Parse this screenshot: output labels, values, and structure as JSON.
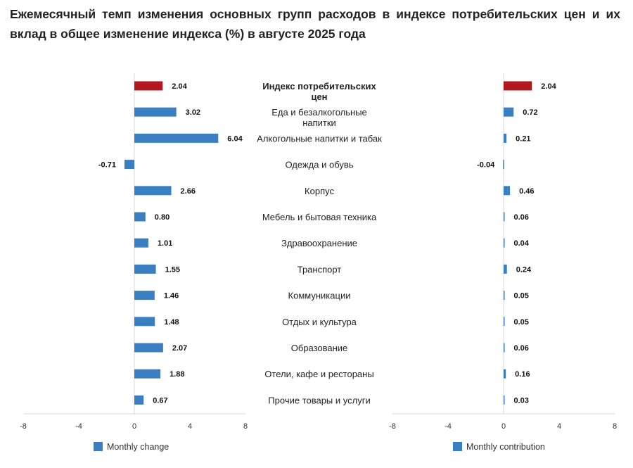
{
  "chart_data": {
    "type": "bar",
    "orientation": "horizontal",
    "title": "Ежемесячный темп изменения основных групп расходов в индексе потребительских цен и их вклад в общее изменение индекса (%) в августе 2025 года",
    "categories": [
      "Индекс потребительских цен",
      "Еда и безалкогольные напитки",
      "Алкогольные напитки и табак",
      "Одежда и обувь",
      "Корпус",
      "Мебель и бытовая техника",
      "Здравоохранение",
      "Транспорт",
      "Коммуникации",
      "Отдых и культура",
      "Образование",
      "Отели, кафе и рестораны",
      "Прочие товары и услуги"
    ],
    "category_lines": [
      [
        "Индекс потребительских",
        "цен"
      ],
      [
        "Еда и безалкогольные",
        "напитки"
      ],
      [
        "Алкогольные напитки и табак"
      ],
      [
        "Одежда и обувь"
      ],
      [
        "Корпус"
      ],
      [
        "Мебель и бытовая техника"
      ],
      [
        "Здравоохранение"
      ],
      [
        "Транспорт"
      ],
      [
        "Коммуникации"
      ],
      [
        "Отдых и культура"
      ],
      [
        "Образование"
      ],
      [
        "Отели, кафе и рестораны"
      ],
      [
        "Прочие товары и услуги"
      ]
    ],
    "series": [
      {
        "name": "Monthly change",
        "values": [
          2.04,
          3.02,
          6.04,
          -0.71,
          2.66,
          0.8,
          1.01,
          1.55,
          1.46,
          1.48,
          2.07,
          1.88,
          0.67
        ],
        "labels": [
          "2.04",
          "3.02",
          "6.04",
          "-0.71",
          "2.66",
          "0.80",
          "1.01",
          "1.55",
          "1.46",
          "1.48",
          "2.07",
          "1.88",
          "0.67"
        ]
      },
      {
        "name": "Monthly contribution",
        "values": [
          2.04,
          0.72,
          0.21,
          -0.04,
          0.46,
          0.06,
          0.04,
          0.24,
          0.05,
          0.05,
          0.06,
          0.16,
          0.03
        ],
        "labels": [
          "2.04",
          "0.72",
          "0.21",
          "-0.04",
          "0.46",
          "0.06",
          "0.04",
          "0.24",
          "0.05",
          "0.05",
          "0.06",
          "0.16",
          "0.03"
        ]
      }
    ],
    "xlim": [
      -8,
      8
    ],
    "xticks": [
      "-8",
      "-4",
      "0",
      "4",
      "8"
    ],
    "legend": "bottom",
    "grid": false,
    "colors": {
      "bar": "#3a7fc1",
      "highlight": "#b0181d"
    }
  }
}
